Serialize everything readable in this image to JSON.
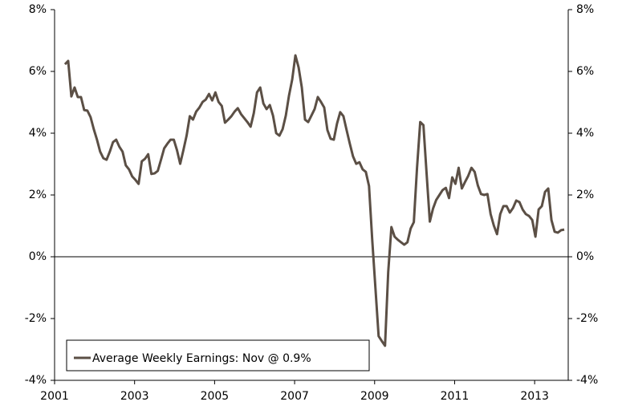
{
  "chart_data": {
    "type": "line",
    "xlim": [
      2001,
      2014
    ],
    "xticks": [
      2001,
      2003,
      2005,
      2007,
      2009,
      2011,
      2013
    ],
    "ylim": [
      -4,
      8
    ],
    "yticks": [
      {
        "value": -4,
        "label": "-4%"
      },
      {
        "value": -2,
        "label": "-2%"
      },
      {
        "value": 0,
        "label": "0%"
      },
      {
        "value": 2,
        "label": "2%"
      },
      {
        "value": 4,
        "label": "4%"
      },
      {
        "value": 6,
        "label": "6%"
      },
      {
        "value": 8,
        "label": "8%"
      }
    ],
    "legend": "lower left",
    "x": [
      2001.26,
      2001.34,
      2001.42,
      2001.5,
      2001.58,
      2001.66,
      2001.74,
      2001.82,
      2001.9,
      2001.98,
      2002.06,
      2002.14,
      2002.22,
      2002.3,
      2002.38,
      2002.46,
      2002.54,
      2002.62,
      2002.7,
      2002.78,
      2002.86,
      2002.94,
      2003.02,
      2003.1,
      2003.18,
      2003.26,
      2003.34,
      2003.42,
      2003.5,
      2003.58,
      2003.66,
      2003.74,
      2003.82,
      2003.9,
      2003.98,
      2004.06,
      2004.14,
      2004.22,
      2004.3,
      2004.38,
      2004.46,
      2004.54,
      2004.62,
      2004.7,
      2004.78,
      2004.86,
      2004.94,
      2005.02,
      2005.1,
      2005.18,
      2005.26,
      2005.34,
      2005.42,
      2005.5,
      2005.58,
      2005.66,
      2005.74,
      2005.82,
      2005.9,
      2005.98,
      2006.06,
      2006.14,
      2006.22,
      2006.3,
      2006.38,
      2006.46,
      2006.54,
      2006.62,
      2006.7,
      2006.78,
      2006.86,
      2006.94,
      2007.02,
      2007.1,
      2007.18,
      2007.26,
      2007.34,
      2007.42,
      2007.5,
      2007.58,
      2007.66,
      2007.74,
      2007.82,
      2007.9,
      2007.98,
      2008.06,
      2008.14,
      2008.22,
      2008.3,
      2008.38,
      2008.46,
      2008.54,
      2008.62,
      2008.7,
      2008.78,
      2008.86,
      2008.94,
      2009.02,
      2009.1,
      2009.18,
      2009.26,
      2009.34,
      2009.42,
      2009.5,
      2009.58,
      2009.66,
      2009.74,
      2009.82,
      2009.9,
      2009.98,
      2010.06,
      2010.14,
      2010.22,
      2010.3,
      2010.38,
      2010.46,
      2010.54,
      2010.62,
      2010.7,
      2010.78,
      2010.86,
      2010.94,
      2011.02,
      2011.1,
      2011.18,
      2011.26,
      2011.34,
      2011.42,
      2011.5,
      2011.58,
      2011.66,
      2011.74,
      2011.82,
      2011.9,
      2011.98,
      2012.06,
      2012.14,
      2012.22,
      2012.3,
      2012.38,
      2012.46,
      2012.54,
      2012.62,
      2012.7,
      2012.78,
      2012.86,
      2012.94,
      2013.02,
      2013.1,
      2013.18,
      2013.26,
      2013.34,
      2013.42,
      2013.5,
      2013.58,
      2013.66,
      2013.74
    ],
    "series": [
      {
        "name": "Average Weekly Earnings: Nov @ 0.9%",
        "color": "#5b4f45",
        "values": [
          6.23,
          6.34,
          5.19,
          5.48,
          5.17,
          5.17,
          4.75,
          4.73,
          4.52,
          4.13,
          3.79,
          3.4,
          3.19,
          3.14,
          3.4,
          3.71,
          3.79,
          3.56,
          3.4,
          2.96,
          2.83,
          2.6,
          2.49,
          2.36,
          3.09,
          3.17,
          3.32,
          2.68,
          2.7,
          2.78,
          3.14,
          3.51,
          3.66,
          3.79,
          3.79,
          3.45,
          3.01,
          3.45,
          3.92,
          4.55,
          4.44,
          4.7,
          4.83,
          5.01,
          5.09,
          5.27,
          5.06,
          5.32,
          5.01,
          4.88,
          4.34,
          4.44,
          4.55,
          4.7,
          4.81,
          4.62,
          4.49,
          4.36,
          4.21,
          4.65,
          5.32,
          5.48,
          4.96,
          4.78,
          4.91,
          4.57,
          4.0,
          3.92,
          4.13,
          4.57,
          5.22,
          5.74,
          6.52,
          6.13,
          5.48,
          4.44,
          4.36,
          4.57,
          4.78,
          5.17,
          5.01,
          4.83,
          4.1,
          3.82,
          3.79,
          4.31,
          4.68,
          4.55,
          4.1,
          3.66,
          3.25,
          3.01,
          3.06,
          2.83,
          2.75,
          2.29,
          0.55,
          -1.01,
          -2.57,
          -2.73,
          -2.88,
          -0.49,
          0.96,
          0.65,
          0.55,
          0.47,
          0.39,
          0.47,
          0.91,
          1.12,
          2.88,
          4.36,
          4.26,
          2.68,
          1.14,
          1.56,
          1.84,
          2.0,
          2.16,
          2.23,
          1.9,
          2.57,
          2.36,
          2.88,
          2.21,
          2.42,
          2.62,
          2.88,
          2.75,
          2.31,
          2.03,
          2.0,
          2.03,
          1.38,
          1.01,
          0.73,
          1.38,
          1.64,
          1.64,
          1.43,
          1.58,
          1.82,
          1.77,
          1.53,
          1.38,
          1.32,
          1.19,
          0.65,
          1.53,
          1.64,
          2.1,
          2.21,
          1.19,
          0.81,
          0.78,
          0.86,
          0.88
        ]
      }
    ]
  }
}
